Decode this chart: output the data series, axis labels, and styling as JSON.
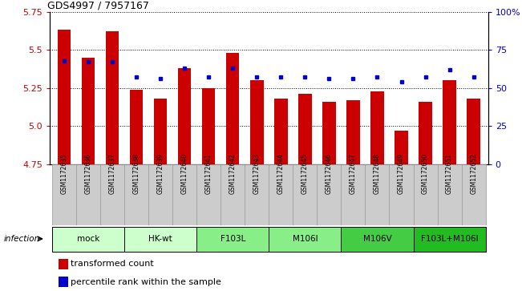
{
  "title": "GDS4997 / 7957167",
  "samples": [
    "GSM1172635",
    "GSM1172636",
    "GSM1172637",
    "GSM1172638",
    "GSM1172639",
    "GSM1172640",
    "GSM1172641",
    "GSM1172642",
    "GSM1172643",
    "GSM1172644",
    "GSM1172645",
    "GSM1172646",
    "GSM1172647",
    "GSM1172648",
    "GSM1172649",
    "GSM1172650",
    "GSM1172651",
    "GSM1172652"
  ],
  "bar_values": [
    5.63,
    5.45,
    5.62,
    5.24,
    5.18,
    5.38,
    5.25,
    5.48,
    5.3,
    5.18,
    5.21,
    5.16,
    5.17,
    5.23,
    4.97,
    5.16,
    5.3,
    5.18
  ],
  "percentile_values": [
    68,
    67,
    67,
    57,
    56,
    63,
    57,
    63,
    57,
    57,
    57,
    56,
    56,
    57,
    54,
    57,
    62,
    57
  ],
  "ylim_left": [
    4.75,
    5.75
  ],
  "ylim_right": [
    0,
    100
  ],
  "yticks_left": [
    4.75,
    5.0,
    5.25,
    5.5,
    5.75
  ],
  "yticks_right": [
    0,
    25,
    50,
    75,
    100
  ],
  "ytick_labels_right": [
    "0",
    "25",
    "50",
    "75",
    "100%"
  ],
  "bar_color": "#cc0000",
  "dot_color": "#0000cc",
  "bar_width": 0.55,
  "groups": [
    {
      "label": "mock",
      "indices": [
        0,
        1,
        2
      ],
      "color": "#ccffcc"
    },
    {
      "label": "HK-wt",
      "indices": [
        3,
        4,
        5
      ],
      "color": "#ccffcc"
    },
    {
      "label": "F103L",
      "indices": [
        6,
        7,
        8
      ],
      "color": "#88ee88"
    },
    {
      "label": "M106I",
      "indices": [
        9,
        10,
        11
      ],
      "color": "#88ee88"
    },
    {
      "label": "M106V",
      "indices": [
        12,
        13,
        14
      ],
      "color": "#44cc44"
    },
    {
      "label": "F103L+M106I",
      "indices": [
        15,
        16,
        17
      ],
      "color": "#22bb22"
    }
  ],
  "sample_box_color": "#cccccc",
  "sample_box_edge": "#999999",
  "infection_label": "infection"
}
